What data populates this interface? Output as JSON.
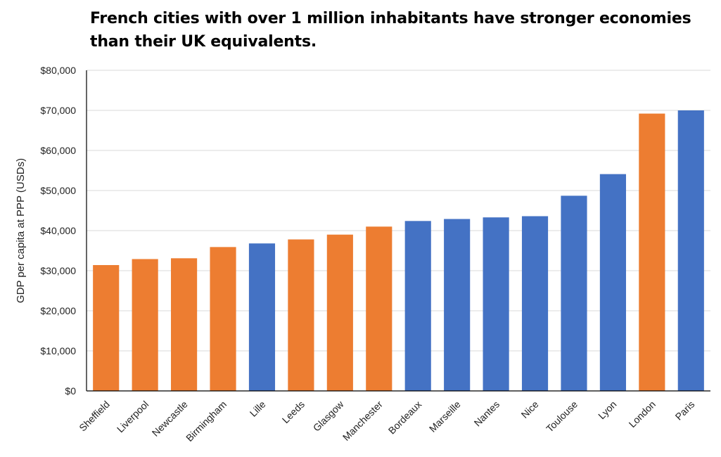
{
  "chart_data": {
    "type": "bar",
    "title": "French cities with over 1 million inhabitants have stronger economies than their UK equivalents.",
    "xlabel": "",
    "ylabel": "GDP per capita at PPP (USDs)",
    "ylim": [
      0,
      80000
    ],
    "yticks": [
      0,
      10000,
      20000,
      30000,
      40000,
      50000,
      60000,
      70000,
      80000
    ],
    "ytick_labels": [
      "$0",
      "$10,000",
      "$20,000",
      "$30,000",
      "$40,000",
      "$50,000",
      "$60,000",
      "$70,000",
      "$80,000"
    ],
    "grid": true,
    "categories": [
      "Sheffield",
      "Liverpool",
      "Newcastle",
      "Birmingham",
      "Lille",
      "Leeds",
      "Glasgow",
      "Manchester",
      "Bordeaux",
      "Marseille",
      "Nantes",
      "Nice",
      "Toulouse",
      "Lyon",
      "London",
      "Paris"
    ],
    "values": [
      31400,
      32900,
      33100,
      35900,
      36800,
      37800,
      39000,
      41000,
      42400,
      42900,
      43300,
      43600,
      48700,
      54100,
      69200,
      70000
    ],
    "countries": [
      "UK",
      "UK",
      "UK",
      "UK",
      "France",
      "UK",
      "UK",
      "UK",
      "France",
      "France",
      "France",
      "France",
      "France",
      "France",
      "UK",
      "France"
    ],
    "colors": {
      "UK": "#ED7D31",
      "France": "#4472C4"
    }
  }
}
